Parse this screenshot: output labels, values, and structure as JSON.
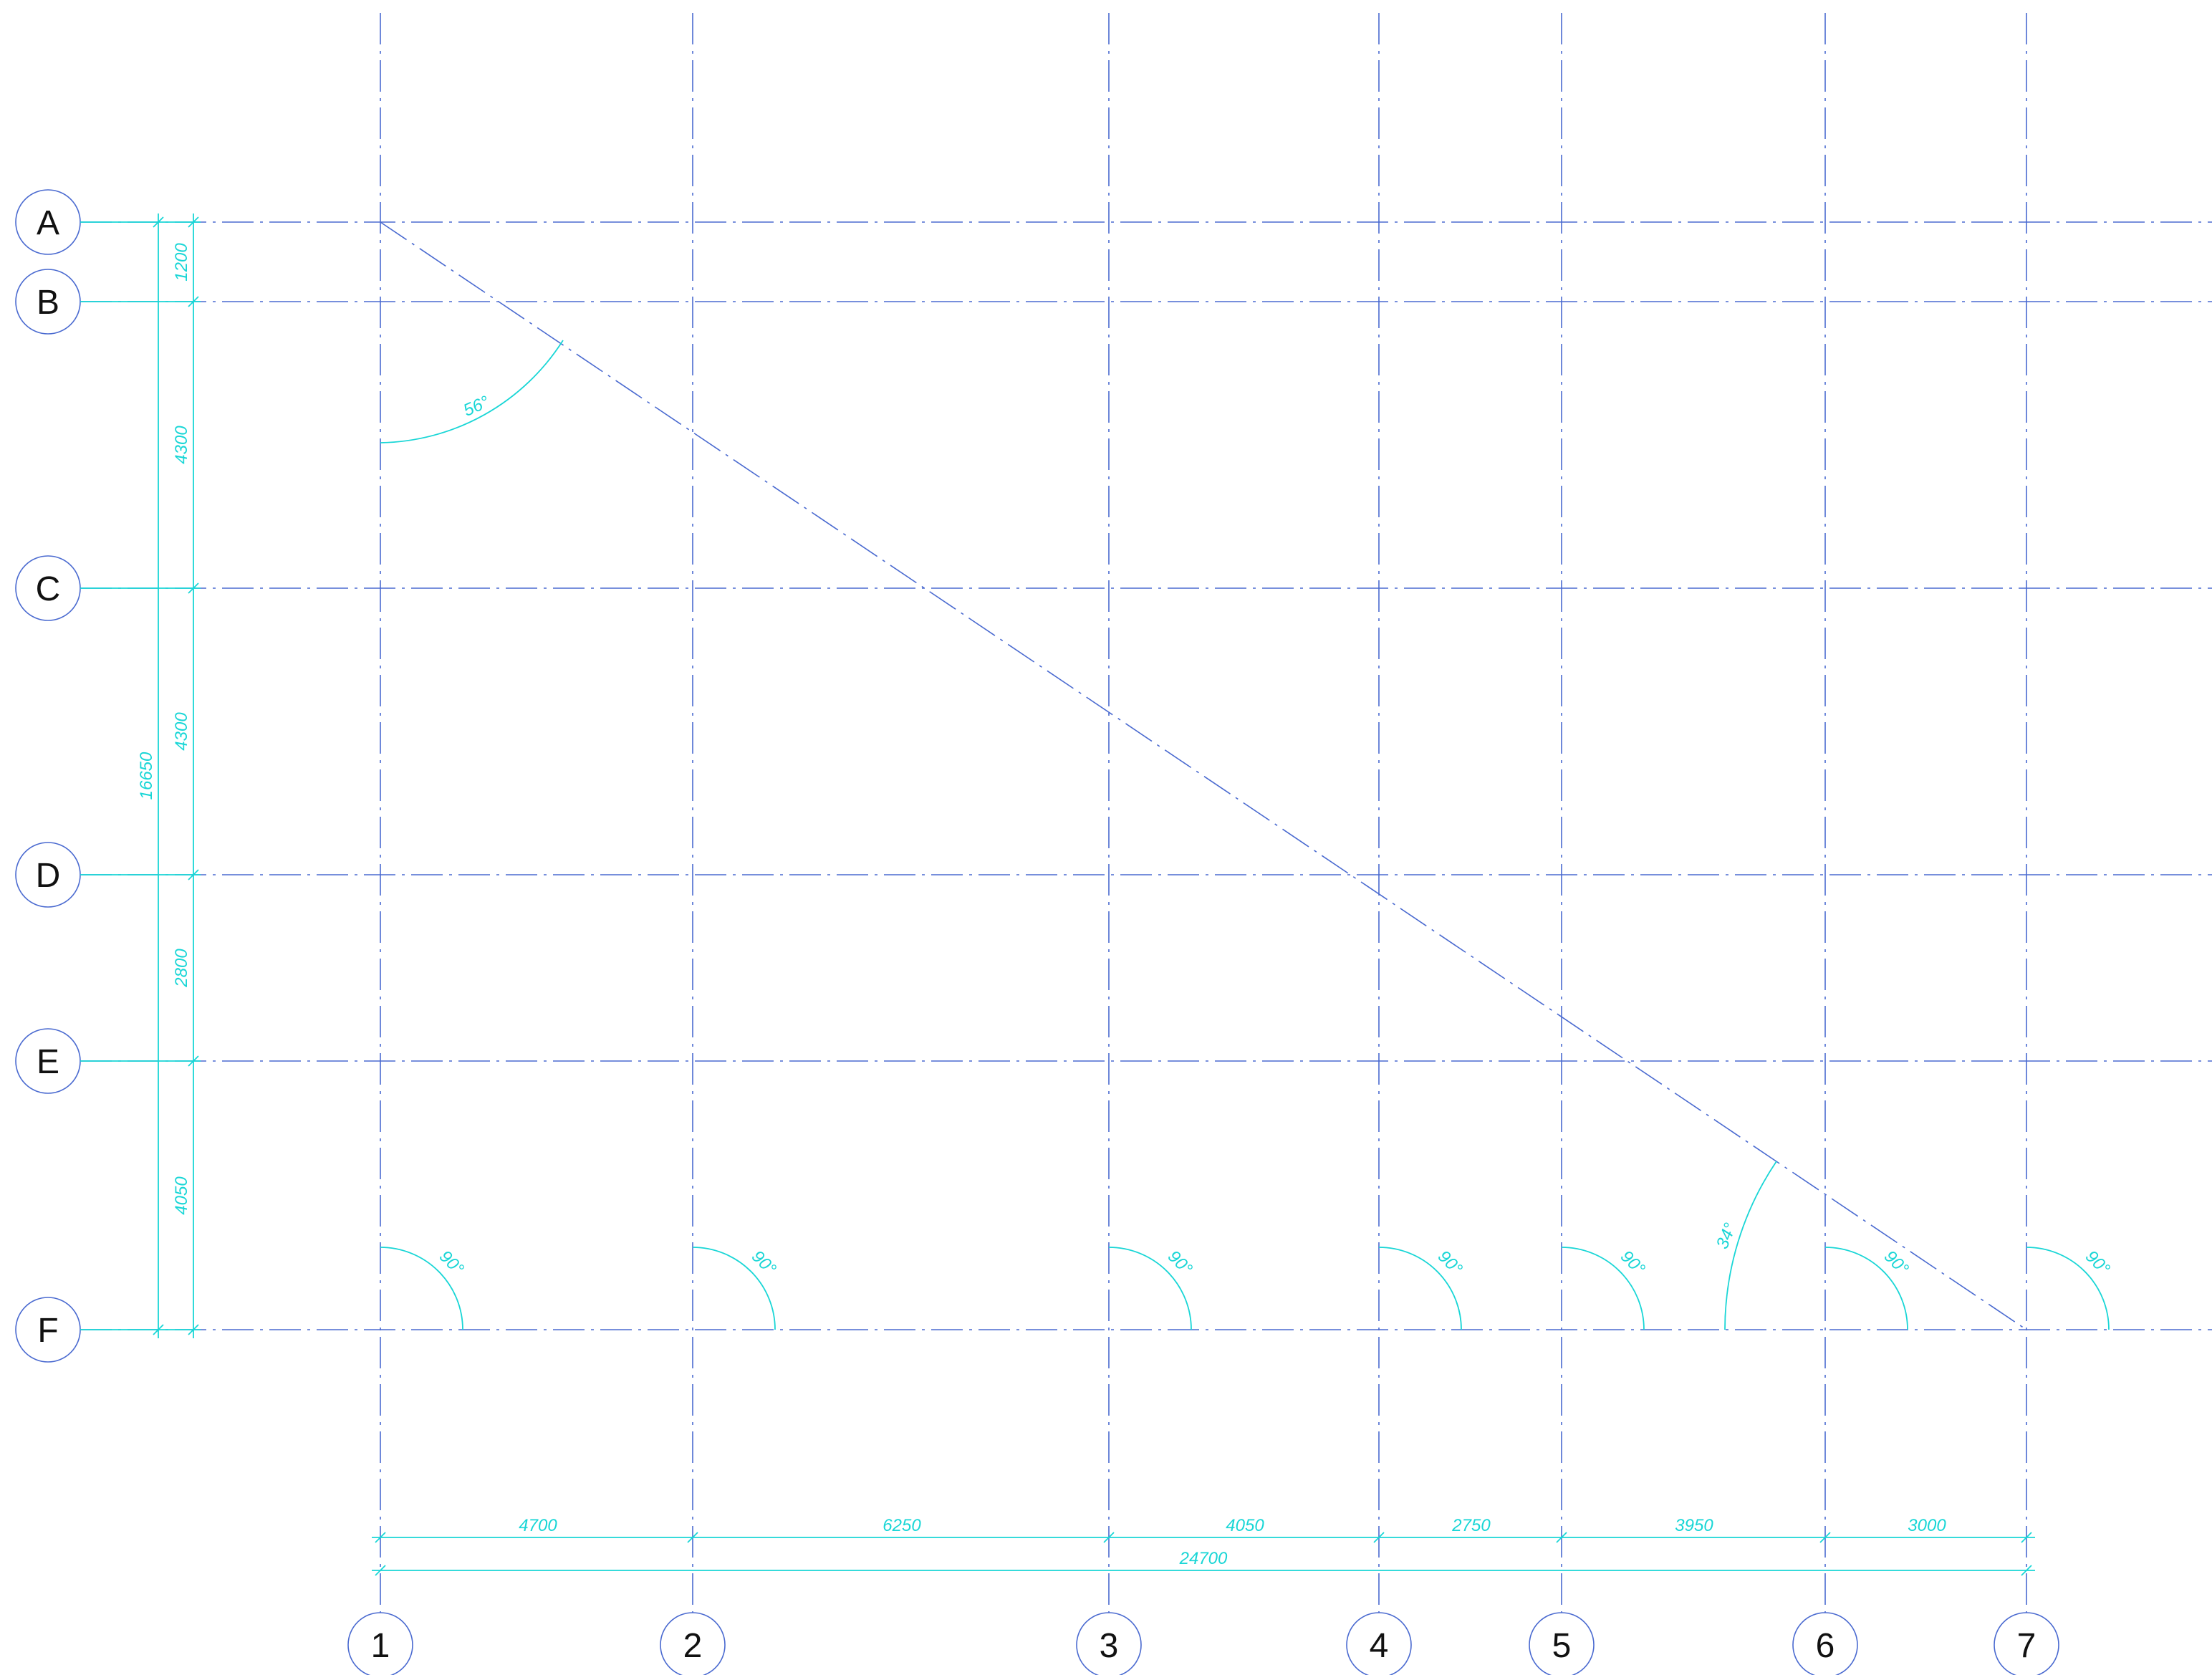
{
  "row_axes": [
    "A",
    "B",
    "C",
    "D",
    "E",
    "F"
  ],
  "column_axes": [
    "1",
    "2",
    "3",
    "4",
    "5",
    "6",
    "7"
  ],
  "row_spacing_dims": [
    "1200",
    "4300",
    "4300",
    "2800",
    "4050"
  ],
  "row_total_dim": "16650",
  "column_spacing_dims": [
    "4700",
    "6250",
    "4050",
    "2750",
    "3950",
    "3000"
  ],
  "column_total_dim": "24700",
  "angle_labels": {
    "top": "56°",
    "right_corner": "90°",
    "diagonal_bottom": "34°"
  },
  "colors": {
    "grid": "#4a6ad0",
    "dimension": "#19d6d6",
    "text": "#111111"
  }
}
